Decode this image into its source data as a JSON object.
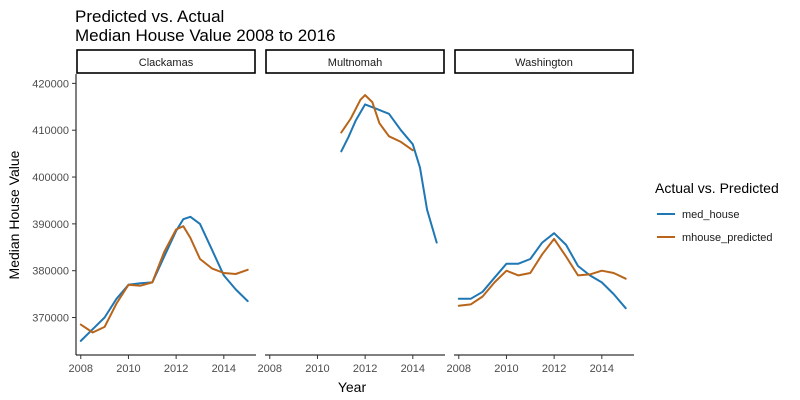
{
  "chart_data": {
    "type": "line",
    "title": [
      "Predicted vs. Actual",
      "Median House Value 2008 to 2016"
    ],
    "xlabel": "Year",
    "ylabel": "Median House Value",
    "xlim": [
      2007.8,
      2015.35
    ],
    "ylim": [
      362000,
      422000
    ],
    "x_ticks": [
      2008,
      2010,
      2012,
      2014
    ],
    "y_ticks": [
      370000,
      380000,
      390000,
      400000,
      410000,
      420000
    ],
    "grid": false,
    "legend": {
      "title": "Actual vs. Predicted",
      "position": "right",
      "entries": [
        {
          "name": "med_house",
          "color": "#1f77b4"
        },
        {
          "name": "mhouse_predicted",
          "color": "#b8651b"
        }
      ]
    },
    "facets": [
      {
        "name": "Clackamas",
        "series": [
          {
            "name": "med_house",
            "points": [
              [
                2008.0,
                365000
              ],
              [
                2008.5,
                367500
              ],
              [
                2009.0,
                370000
              ],
              [
                2009.5,
                374000
              ],
              [
                2010.0,
                377000
              ],
              [
                2010.5,
                377300
              ],
              [
                2011.0,
                377500
              ],
              [
                2011.5,
                383000
              ],
              [
                2012.0,
                388500
              ],
              [
                2012.3,
                391000
              ],
              [
                2012.6,
                391500
              ],
              [
                2013.0,
                390000
              ],
              [
                2013.5,
                384500
              ],
              [
                2014.0,
                379000
              ],
              [
                2014.5,
                376000
              ],
              [
                2015.0,
                373500
              ]
            ]
          },
          {
            "name": "mhouse_predicted",
            "points": [
              [
                2008.0,
                368500
              ],
              [
                2008.5,
                366800
              ],
              [
                2009.0,
                368000
              ],
              [
                2009.5,
                373000
              ],
              [
                2010.0,
                377000
              ],
              [
                2010.5,
                376800
              ],
              [
                2011.0,
                377500
              ],
              [
                2011.5,
                384000
              ],
              [
                2012.0,
                388800
              ],
              [
                2012.3,
                389500
              ],
              [
                2012.6,
                387000
              ],
              [
                2013.0,
                382500
              ],
              [
                2013.5,
                380500
              ],
              [
                2014.0,
                379500
              ],
              [
                2014.5,
                379300
              ],
              [
                2015.0,
                380200
              ]
            ]
          }
        ]
      },
      {
        "name": "Multnomah",
        "series": [
          {
            "name": "med_house",
            "points": [
              [
                2011.0,
                405500
              ],
              [
                2011.3,
                408500
              ],
              [
                2011.6,
                412000
              ],
              [
                2012.0,
                415500
              ],
              [
                2012.5,
                414500
              ],
              [
                2013.0,
                413500
              ],
              [
                2013.5,
                410000
              ],
              [
                2014.0,
                407000
              ],
              [
                2014.3,
                402000
              ],
              [
                2014.6,
                393000
              ],
              [
                2015.0,
                386000
              ]
            ]
          },
          {
            "name": "mhouse_predicted",
            "points": [
              [
                2011.0,
                409500
              ],
              [
                2011.4,
                412500
              ],
              [
                2011.8,
                416500
              ],
              [
                2012.0,
                417500
              ],
              [
                2012.3,
                416000
              ],
              [
                2012.6,
                411500
              ],
              [
                2013.0,
                408700
              ],
              [
                2013.5,
                407500
              ],
              [
                2014.0,
                405700
              ]
            ]
          }
        ]
      },
      {
        "name": "Washington",
        "series": [
          {
            "name": "med_house",
            "points": [
              [
                2008.0,
                374000
              ],
              [
                2008.5,
                374000
              ],
              [
                2009.0,
                375500
              ],
              [
                2009.5,
                378500
              ],
              [
                2010.0,
                381500
              ],
              [
                2010.5,
                381500
              ],
              [
                2011.0,
                382500
              ],
              [
                2011.5,
                386000
              ],
              [
                2012.0,
                388000
              ],
              [
                2012.5,
                385500
              ],
              [
                2013.0,
                381000
              ],
              [
                2013.5,
                379000
              ],
              [
                2014.0,
                377500
              ],
              [
                2014.5,
                375000
              ],
              [
                2015.0,
                372000
              ]
            ]
          },
          {
            "name": "mhouse_predicted",
            "points": [
              [
                2008.0,
                372500
              ],
              [
                2008.5,
                372800
              ],
              [
                2009.0,
                374500
              ],
              [
                2009.5,
                377500
              ],
              [
                2010.0,
                380000
              ],
              [
                2010.5,
                379000
              ],
              [
                2011.0,
                379500
              ],
              [
                2011.5,
                383500
              ],
              [
                2012.0,
                386800
              ],
              [
                2012.5,
                383000
              ],
              [
                2013.0,
                379000
              ],
              [
                2013.5,
                379200
              ],
              [
                2014.0,
                380000
              ],
              [
                2014.5,
                379500
              ],
              [
                2015.0,
                378300
              ]
            ]
          }
        ]
      }
    ]
  }
}
